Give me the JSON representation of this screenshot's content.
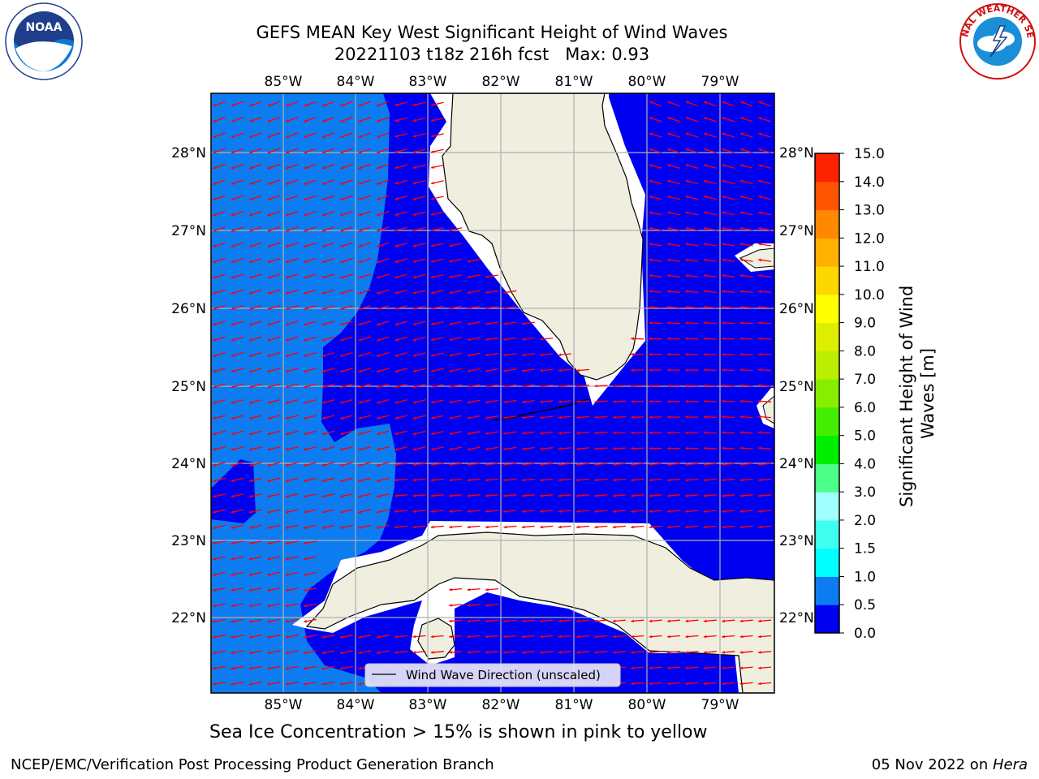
{
  "header": {
    "title_line1": "GEFS MEAN Key West Significant Height of Wind Waves",
    "title_line2": "20221103 t18z 216h fcst   Max: 0.93"
  },
  "map": {
    "lon_ticks": [
      "85°W",
      "84°W",
      "83°W",
      "82°W",
      "81°W",
      "80°W",
      "79°W"
    ],
    "lat_ticks": [
      "28°N",
      "27°N",
      "26°N",
      "25°N",
      "24°N",
      "23°N",
      "22°N"
    ],
    "legend_label": "Wind Wave Direction (unscaled)",
    "colors": {
      "land": "#efeedf",
      "low": "#0000f0",
      "mid": "#0c7cf0",
      "arrow": "#ff0000",
      "grid": "#b0b0b0"
    }
  },
  "colorbar": {
    "label": "Significant Height of Wind Waves [m]",
    "ticks": [
      "0.0",
      "0.5",
      "1.0",
      "1.5",
      "2.0",
      "3.0",
      "4.0",
      "5.0",
      "6.0",
      "7.0",
      "8.0",
      "9.0",
      "10.0",
      "11.0",
      "12.0",
      "13.0",
      "14.0",
      "15.0"
    ],
    "colors": [
      "#0000f0",
      "#0c7cf0",
      "#00ffff",
      "#40ffee",
      "#a0ffff",
      "#4cff88",
      "#00ee00",
      "#44ee00",
      "#88ee00",
      "#bbee00",
      "#ddee00",
      "#ffff00",
      "#ffd700",
      "#ffb000",
      "#ff8800",
      "#ff5500",
      "#ff2200",
      "#ff0000"
    ]
  },
  "subnote": "Sea Ice Concentration > 15% is shown in pink to yellow",
  "footer": {
    "left": "NCEP/EMC/Verification Post Processing Product Generation Branch",
    "right_date": "05 Nov 2022 on ",
    "right_host": "Hera"
  },
  "logos": {
    "noaa_text": "NOAA",
    "nws_text": "NATIONAL WEATHER SERVICE"
  }
}
